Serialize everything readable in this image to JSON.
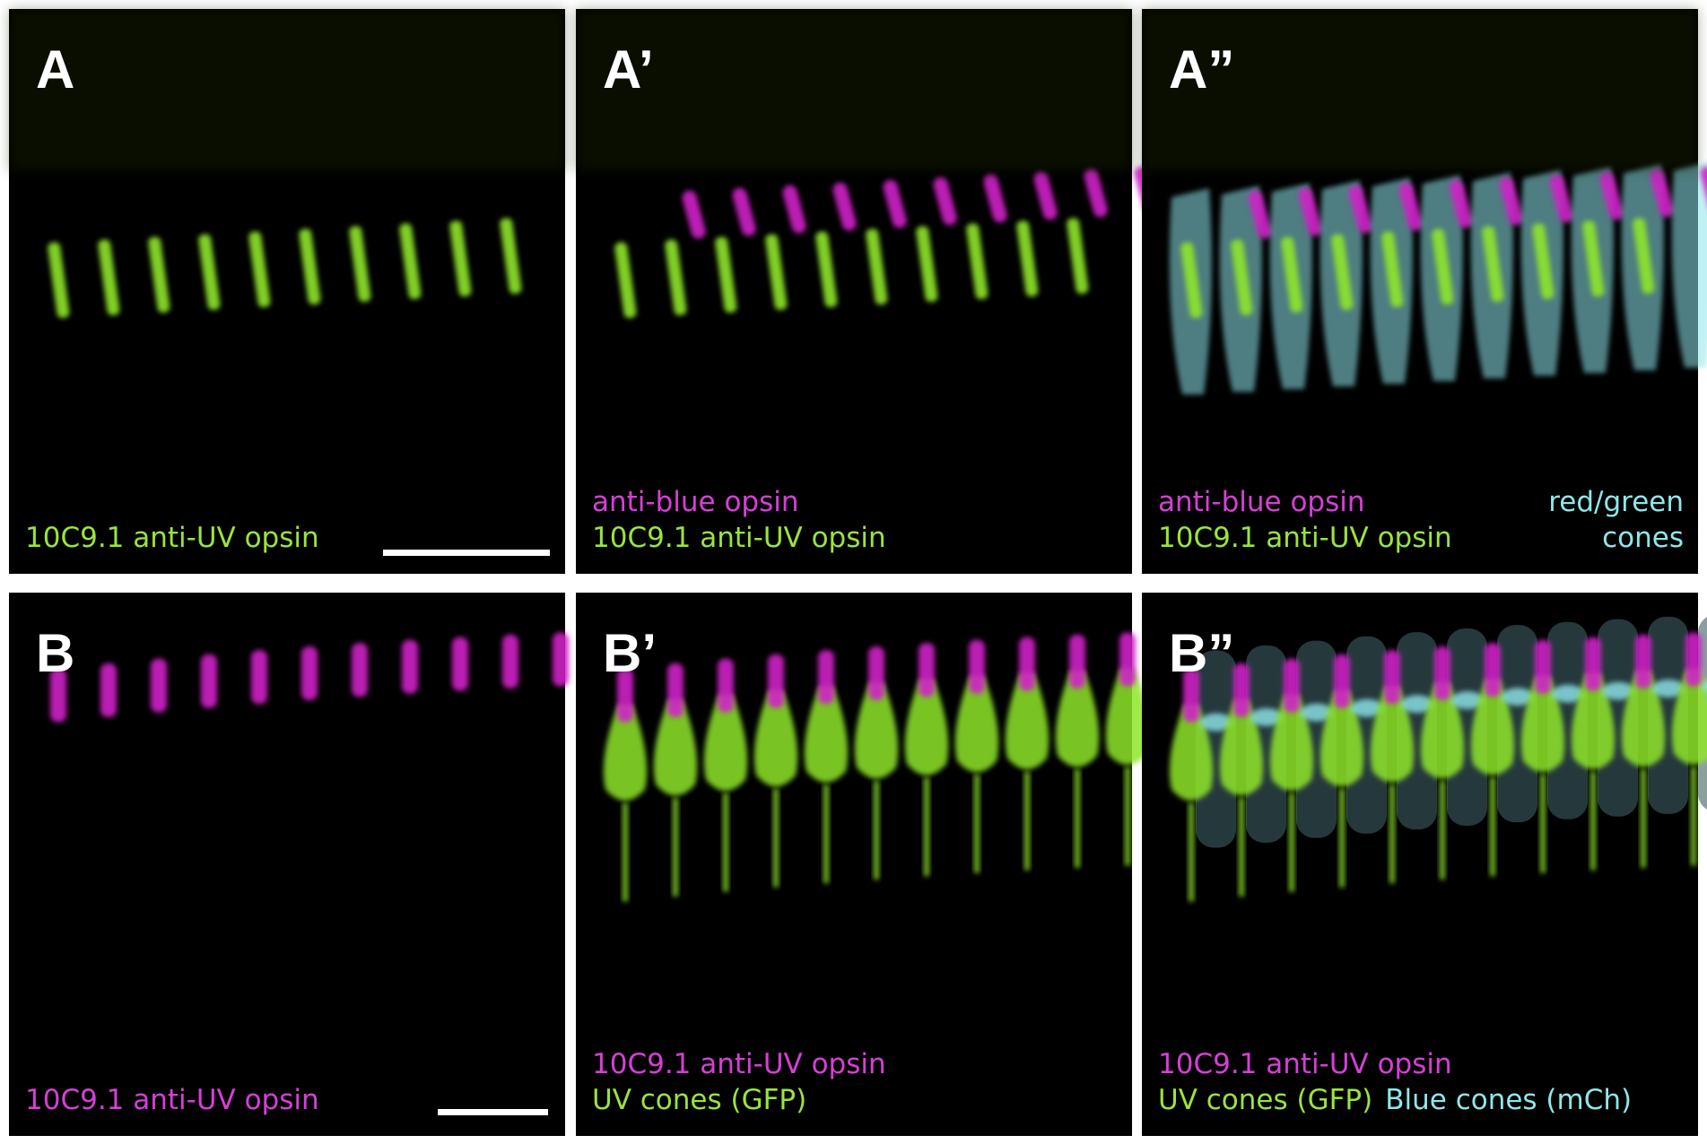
{
  "panels": [
    {
      "label": "A",
      "lines": [
        [
          {
            "text": "10C9.1 anti-UV opsin",
            "color": "#9be43c"
          }
        ]
      ],
      "scale_bar": true
    },
    {
      "label": "A’",
      "lines": [
        [
          {
            "text": "anti-blue opsin",
            "color": "#d63fd6"
          }
        ],
        [
          {
            "text": "10C9.1 anti-UV opsin",
            "color": "#9be43c"
          }
        ]
      ]
    },
    {
      "label": "A”",
      "lines": [
        [
          {
            "text": "anti-blue opsin",
            "color": "#d63fd6"
          }
        ],
        [
          {
            "text": "10C9.1 anti-UV opsin",
            "color": "#9be43c"
          }
        ]
      ],
      "right_lines": [
        {
          "text": "red/green",
          "color": "#8fe6ea"
        },
        {
          "text": "cones",
          "color": "#8fe6ea"
        }
      ]
    },
    {
      "label": "B",
      "lines": [
        [
          {
            "text": "10C9.1 anti-UV opsin",
            "color": "#d63fd6"
          }
        ]
      ],
      "scale_bar": true
    },
    {
      "label": "B’",
      "lines": [
        [
          {
            "text": "10C9.1 anti-UV opsin",
            "color": "#d63fd6"
          }
        ],
        [
          {
            "text": "UV cones (GFP)",
            "color": "#9be43c"
          }
        ]
      ]
    },
    {
      "label": "B”",
      "lines": [
        [
          {
            "text": "10C9.1 anti-UV opsin",
            "color": "#d63fd6"
          }
        ],
        [
          {
            "text": "UV cones (GFP)",
            "color": "#9be43c"
          },
          {
            "text": "Blue cones (mCh)",
            "color": "#8fe6ea"
          }
        ]
      ]
    }
  ]
}
